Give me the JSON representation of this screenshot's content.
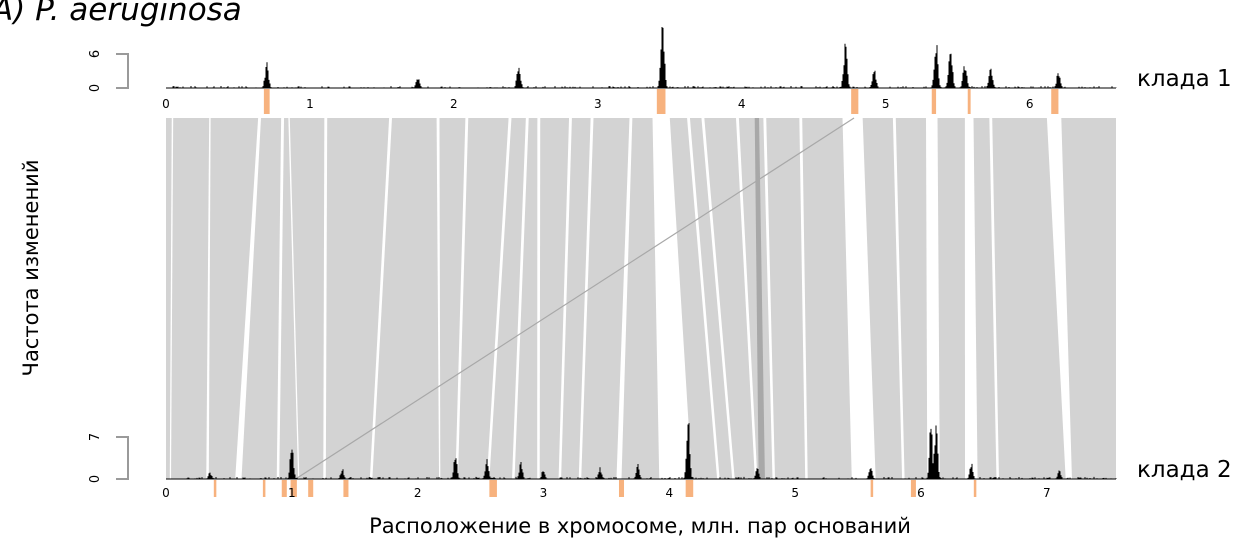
{
  "figure": {
    "title": "A) P. aeruginosa",
    "ylabel": "Частота изменений",
    "xlabel": "Расположение в хромосоме, млн. пар оснований"
  },
  "colors": {
    "band": "#d3d3d3",
    "band_dark": "#a8a8a8",
    "gap": "#ffffff",
    "hotspot": "#f7b27e",
    "profile": "#000000",
    "axis": "#9a9a9a"
  },
  "chart_data": [
    {
      "type": "area",
      "name": "clade-1-profile",
      "label": "клада 1",
      "xlim": [
        0,
        6.6
      ],
      "ylim": [
        0,
        6
      ],
      "ytick_labels": [
        "0",
        "6"
      ],
      "xtick_labels": [
        "0",
        "1",
        "2",
        "3",
        "4",
        "5",
        "6"
      ],
      "peaks": [
        {
          "x": 0.7,
          "y": 5
        },
        {
          "x": 1.75,
          "y": 2
        },
        {
          "x": 2.45,
          "y": 4.5
        },
        {
          "x": 3.45,
          "y": 12
        },
        {
          "x": 4.72,
          "y": 9
        },
        {
          "x": 4.92,
          "y": 3.5
        },
        {
          "x": 5.35,
          "y": 10
        },
        {
          "x": 5.45,
          "y": 9
        },
        {
          "x": 5.55,
          "y": 5
        },
        {
          "x": 5.73,
          "y": 4
        },
        {
          "x": 6.2,
          "y": 3
        }
      ],
      "hotspots": [
        {
          "start": 0.68,
          "end": 0.72
        },
        {
          "start": 3.41,
          "end": 3.47
        },
        {
          "start": 4.76,
          "end": 4.81
        },
        {
          "start": 5.32,
          "end": 5.35
        },
        {
          "start": 5.57,
          "end": 5.59
        },
        {
          "start": 6.15,
          "end": 6.2
        }
      ]
    },
    {
      "type": "area",
      "name": "clade-2-profile",
      "label": "клада 2",
      "xlim": [
        0,
        7.55
      ],
      "ylim": [
        0,
        7
      ],
      "ytick_labels": [
        "0",
        "7"
      ],
      "xtick_labels": [
        "0",
        "1",
        "2",
        "3",
        "4",
        "5",
        "6",
        "7"
      ],
      "peaks": [
        {
          "x": 0.35,
          "y": 1.2
        },
        {
          "x": 1.0,
          "y": 7.5
        },
        {
          "x": 1.4,
          "y": 2
        },
        {
          "x": 2.3,
          "y": 5
        },
        {
          "x": 2.55,
          "y": 4
        },
        {
          "x": 2.82,
          "y": 3.5
        },
        {
          "x": 3.0,
          "y": 2
        },
        {
          "x": 3.45,
          "y": 2
        },
        {
          "x": 3.75,
          "y": 3
        },
        {
          "x": 4.15,
          "y": 13
        },
        {
          "x": 4.7,
          "y": 2
        },
        {
          "x": 5.6,
          "y": 2.5
        },
        {
          "x": 6.08,
          "y": 10
        },
        {
          "x": 6.12,
          "y": 11
        },
        {
          "x": 6.4,
          "y": 3
        },
        {
          "x": 7.1,
          "y": 1.5
        }
      ],
      "hotspots": [
        {
          "start": 0.38,
          "end": 0.4
        },
        {
          "start": 0.77,
          "end": 0.79
        },
        {
          "start": 0.92,
          "end": 0.96
        },
        {
          "start": 0.99,
          "end": 1.04
        },
        {
          "start": 1.13,
          "end": 1.17
        },
        {
          "start": 1.41,
          "end": 1.45
        },
        {
          "start": 2.57,
          "end": 2.63
        },
        {
          "start": 3.6,
          "end": 3.64
        },
        {
          "start": 4.13,
          "end": 4.19
        },
        {
          "start": 5.6,
          "end": 5.62
        },
        {
          "start": 5.92,
          "end": 5.96
        },
        {
          "start": 6.42,
          "end": 6.44
        }
      ]
    }
  ],
  "synteny": {
    "type": "synteny",
    "bands": [
      {
        "a": [
          0.0,
          0.04
        ],
        "b": [
          0.0,
          0.03
        ]
      },
      {
        "a": [
          0.05,
          0.3
        ],
        "b": [
          0.04,
          0.32
        ]
      },
      {
        "a": [
          0.31,
          0.64
        ],
        "b": [
          0.34,
          0.55
        ]
      },
      {
        "a": [
          0.66,
          0.8
        ],
        "b": [
          0.6,
          0.88
        ]
      },
      {
        "a": [
          0.82,
          0.85
        ],
        "b": [
          0.9,
          1.05
        ]
      },
      {
        "a": [
          0.86,
          1.1
        ],
        "b": [
          1.06,
          1.25
        ]
      },
      {
        "a": [
          1.12,
          1.55
        ],
        "b": [
          1.27,
          1.62
        ]
      },
      {
        "a": [
          1.57,
          1.88
        ],
        "b": [
          1.64,
          2.17
        ]
      },
      {
        "a": [
          1.9,
          2.08
        ],
        "b": [
          2.18,
          2.3
        ]
      },
      {
        "a": [
          2.1,
          2.38
        ],
        "b": [
          2.32,
          2.55
        ]
      },
      {
        "a": [
          2.4,
          2.5
        ],
        "b": [
          2.57,
          2.75
        ]
      },
      {
        "a": [
          2.52,
          2.58
        ],
        "b": [
          2.77,
          2.95
        ]
      },
      {
        "a": [
          2.6,
          2.8
        ],
        "b": [
          2.97,
          3.12
        ]
      },
      {
        "a": [
          2.82,
          2.95
        ],
        "b": [
          3.14,
          3.28
        ]
      },
      {
        "a": [
          2.97,
          3.22
        ],
        "b": [
          3.3,
          3.58
        ]
      },
      {
        "a": [
          3.24,
          3.38
        ],
        "b": [
          3.62,
          3.92
        ]
      },
      {
        "a": [
          3.5,
          3.62
        ],
        "b": [
          4.18,
          4.38
        ]
      },
      {
        "a": [
          3.64,
          3.72
        ],
        "b": [
          4.4,
          4.5
        ]
      },
      {
        "a": [
          3.74,
          3.96
        ],
        "b": [
          4.52,
          4.68
        ]
      },
      {
        "a": [
          3.98,
          4.15
        ],
        "b": [
          4.7,
          4.82
        ]
      },
      {
        "a": [
          4.17,
          4.4
        ],
        "b": [
          4.84,
          5.08
        ]
      },
      {
        "a": [
          4.42,
          4.7
        ],
        "b": [
          5.1,
          5.45
        ]
      },
      {
        "a": [
          4.84,
          5.05
        ],
        "b": [
          5.64,
          5.85
        ]
      },
      {
        "a": [
          5.07,
          5.28
        ],
        "b": [
          5.87,
          6.05
        ]
      },
      {
        "a": [
          5.36,
          5.55
        ],
        "b": [
          6.15,
          6.35
        ]
      },
      {
        "a": [
          5.61,
          5.72
        ],
        "b": [
          6.45,
          6.6
        ]
      },
      {
        "a": [
          5.74,
          6.12
        ],
        "b": [
          6.62,
          7.15
        ]
      },
      {
        "a": [
          6.22,
          6.6
        ],
        "b": [
          7.2,
          7.55
        ]
      }
    ],
    "inverted_bands": [
      {
        "a": [
          4.09,
          4.12
        ],
        "b": [
          4.71,
          4.76
        ]
      }
    ],
    "lines": [
      {
        "a": 4.78,
        "b": 1.03
      }
    ]
  }
}
